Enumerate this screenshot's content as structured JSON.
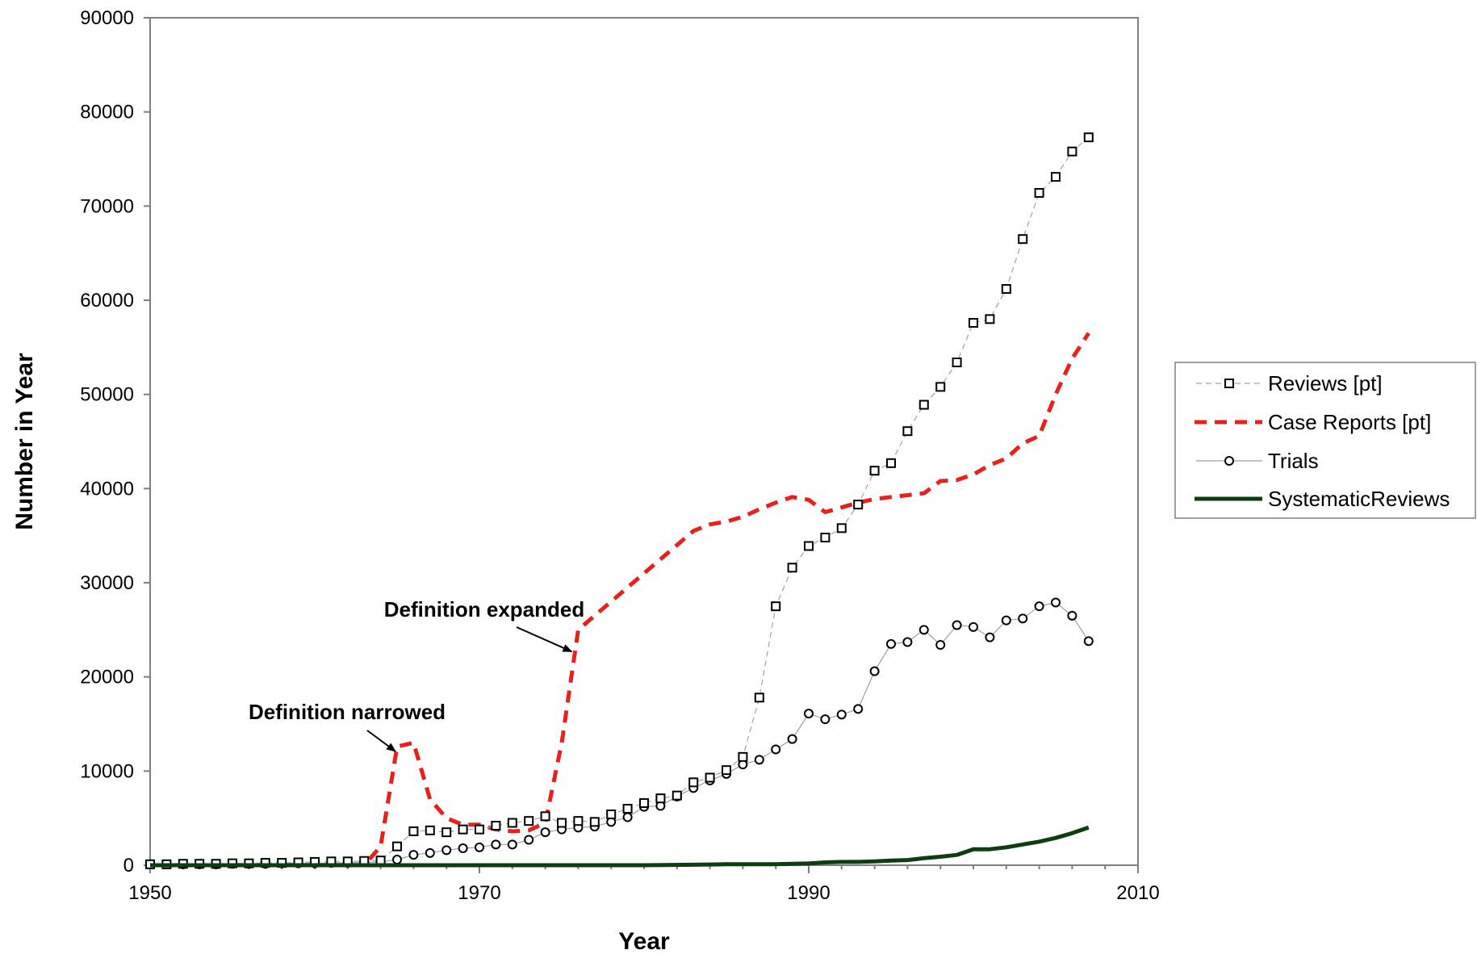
{
  "chart_data": {
    "type": "line",
    "title": "",
    "xlabel": "Year",
    "ylabel": "Number in Year",
    "xlim": [
      1950,
      2010
    ],
    "ylim": [
      0,
      90000
    ],
    "xticks": [
      1950,
      1970,
      1990,
      2010
    ],
    "yticks": [
      0,
      10000,
      20000,
      30000,
      40000,
      50000,
      60000,
      70000,
      80000,
      90000
    ],
    "grid": false,
    "legend_position": "right",
    "colors": {
      "reviews": "#9aa3b5",
      "case_reports": "#e8201e",
      "trials": "#a0a0a0",
      "systematic_reviews": "#0e3d12",
      "markers": "#000000"
    },
    "series": [
      {
        "name": "Reviews [pt]",
        "style": "dashed-thin-square-markers",
        "x": [
          1950,
          1951,
          1952,
          1953,
          1954,
          1955,
          1956,
          1957,
          1958,
          1959,
          1960,
          1961,
          1962,
          1963,
          1964,
          1965,
          1966,
          1967,
          1968,
          1969,
          1970,
          1971,
          1972,
          1973,
          1974,
          1975,
          1976,
          1977,
          1978,
          1979,
          1980,
          1981,
          1982,
          1983,
          1984,
          1985,
          1986,
          1987,
          1988,
          1989,
          1990,
          1991,
          1992,
          1993,
          1994,
          1995,
          1996,
          1997,
          1998,
          1999,
          2000,
          2001,
          2002,
          2003,
          2004,
          2005,
          2006,
          2007
        ],
        "values": [
          100,
          100,
          150,
          150,
          150,
          200,
          200,
          250,
          250,
          300,
          350,
          400,
          400,
          450,
          500,
          2000,
          3600,
          3700,
          3500,
          3800,
          3800,
          4200,
          4500,
          4700,
          5200,
          4500,
          4700,
          4600,
          5400,
          6000,
          6600,
          7100,
          7400,
          8800,
          9300,
          10100,
          11500,
          17800,
          27500,
          31600,
          33900,
          34800,
          35800,
          38300,
          41900,
          42700,
          46100,
          48900,
          50800,
          53400,
          57600,
          58000,
          61200,
          66500,
          71400,
          73100,
          75800,
          77300
        ]
      },
      {
        "name": "Case Reports [pt]",
        "style": "dashed-thick",
        "x": [
          1950,
          1955,
          1960,
          1963,
          1964,
          1965,
          1966,
          1967,
          1968,
          1969,
          1970,
          1971,
          1972,
          1973,
          1974,
          1975,
          1976,
          1977,
          1978,
          1979,
          1980,
          1981,
          1982,
          1983,
          1984,
          1985,
          1986,
          1987,
          1988,
          1989,
          1990,
          1991,
          1992,
          1993,
          1994,
          1995,
          1996,
          1997,
          1998,
          1999,
          2000,
          2001,
          2002,
          2003,
          2004,
          2005,
          2006,
          2007
        ],
        "values": [
          0,
          0,
          0,
          0,
          2000,
          12600,
          13000,
          7000,
          5000,
          4300,
          4300,
          3800,
          3600,
          3700,
          4500,
          13000,
          25000,
          26500,
          28000,
          29500,
          31000,
          32500,
          34000,
          35500,
          36200,
          36500,
          37000,
          37800,
          38500,
          39100,
          38800,
          37500,
          38000,
          38500,
          38900,
          39100,
          39300,
          39500,
          40800,
          40900,
          41500,
          42500,
          43200,
          44800,
          45600,
          50000,
          53800,
          56500
        ]
      },
      {
        "name": "Trials",
        "style": "solid-thin-circle-markers",
        "x": [
          1950,
          1951,
          1952,
          1953,
          1954,
          1955,
          1956,
          1957,
          1958,
          1959,
          1960,
          1961,
          1962,
          1963,
          1964,
          1965,
          1966,
          1967,
          1968,
          1969,
          1970,
          1971,
          1972,
          1973,
          1974,
          1975,
          1976,
          1977,
          1978,
          1979,
          1980,
          1981,
          1982,
          1983,
          1984,
          1985,
          1986,
          1987,
          1988,
          1989,
          1990,
          1991,
          1992,
          1993,
          1994,
          1995,
          1996,
          1997,
          1998,
          1999,
          2000,
          2001,
          2002,
          2003,
          2004,
          2005,
          2006,
          2007
        ],
        "values": [
          100,
          100,
          100,
          100,
          100,
          150,
          150,
          150,
          200,
          200,
          200,
          250,
          250,
          300,
          350,
          600,
          1100,
          1300,
          1600,
          1800,
          1900,
          2200,
          2200,
          2700,
          3500,
          3800,
          4000,
          4100,
          4600,
          5100,
          6200,
          6300,
          7300,
          8200,
          9000,
          9700,
          10700,
          11200,
          12300,
          13400,
          16100,
          15500,
          16000,
          16600,
          20600,
          23500,
          23700,
          25000,
          23400,
          25500,
          25300,
          24200,
          26000,
          26200,
          27500,
          27900,
          26500,
          23800
        ]
      },
      {
        "name": "SystematicReviews",
        "style": "solid-thick",
        "x": [
          1950,
          1980,
          1983,
          1985,
          1988,
          1989,
          1990,
          1991,
          1992,
          1993,
          1994,
          1995,
          1996,
          1997,
          1998,
          1999,
          2000,
          2001,
          2002,
          2003,
          2004,
          2005,
          2006,
          2007
        ],
        "values": [
          0,
          0,
          50,
          100,
          100,
          150,
          200,
          300,
          350,
          350,
          400,
          500,
          550,
          750,
          900,
          1100,
          1700,
          1700,
          1900,
          2200,
          2500,
          2900,
          3400,
          4000
        ]
      }
    ],
    "annotations": [
      {
        "text": "Definition narrowed",
        "target_x": 1965.3,
        "target_y": 12600
      },
      {
        "text": "Definition expanded",
        "target_x": 1976.0,
        "target_y": 23200
      }
    ]
  }
}
